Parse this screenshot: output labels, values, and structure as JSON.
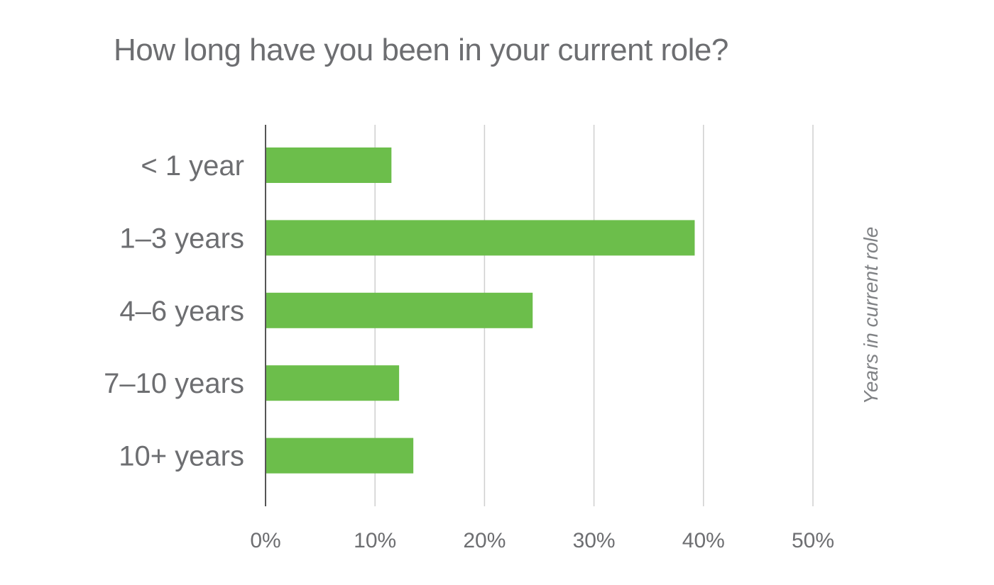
{
  "chart_data": {
    "type": "bar",
    "orientation": "horizontal",
    "title": "How long have you been in your current role?",
    "ylabel": "Years in current role",
    "xlabel": "",
    "categories": [
      "< 1 year",
      "1–3 years",
      "4–6 years",
      "7–10 years",
      "10+ years"
    ],
    "values": [
      11.5,
      39.2,
      24.4,
      12.2,
      13.5
    ],
    "xlim": [
      0,
      50
    ],
    "ticks": [
      0,
      10,
      20,
      30,
      40,
      50
    ],
    "tick_labels": [
      "0%",
      "10%",
      "20%",
      "30%",
      "40%",
      "50%"
    ],
    "grid": true,
    "legend": "none",
    "bar_color": "#6cbe4b",
    "grid_color": "#cfcfcf",
    "axis_color": "#555555",
    "text_color": "#6d6e71"
  }
}
